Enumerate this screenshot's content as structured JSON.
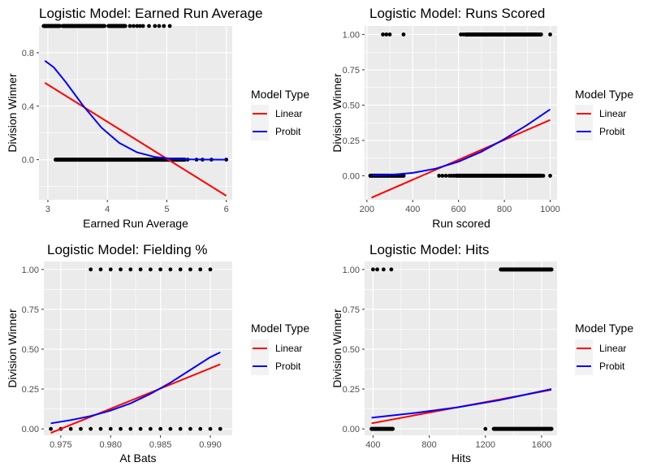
{
  "colors": {
    "panel_bg": "#EBEBEB",
    "grid": "#FFFFFF",
    "points": "#000000",
    "linear": "#FF0000",
    "probit": "#0000FF"
  },
  "legend": {
    "title": "Model Type",
    "items": [
      {
        "label": "Linear",
        "color": "#FF0000"
      },
      {
        "label": "Probit",
        "color": "#0000FF"
      }
    ]
  },
  "chart_data": [
    {
      "type": "scatter",
      "title": "Logistic Model: Earned Run Average",
      "xlabel": "Earned Run Average",
      "ylabel": "Division Winner",
      "xlim": [
        2.85,
        6.1
      ],
      "ylim": [
        -0.3,
        1.0
      ],
      "xticks": [
        3,
        4,
        5,
        6
      ],
      "xtick_labels": [
        "3",
        "4",
        "5",
        "6"
      ],
      "yticks": [
        0,
        0.4,
        0.8
      ],
      "ytick_labels": [
        "0.0",
        "0.4",
        "0.8"
      ],
      "minor_x": [
        3.5,
        4.5,
        5.5
      ],
      "minor_y": [
        -0.2,
        0.2,
        0.6
      ],
      "points": {
        "y1_segments": [
          [
            2.93,
            3.2
          ],
          [
            3.25,
            3.95
          ],
          [
            4.02,
            4.3
          ]
        ],
        "y1_x": [
          4.38,
          4.44,
          4.5,
          4.55,
          4.6,
          4.7,
          4.8,
          4.87,
          4.95,
          5.05
        ],
        "y0_segments": [
          [
            3.13,
            5.3
          ]
        ],
        "y0_x": [
          5.35,
          5.5,
          5.6,
          5.75,
          6.0
        ]
      },
      "series": [
        {
          "name": "Linear",
          "x": [
            2.95,
            6.0
          ],
          "y": [
            0.575,
            -0.27
          ]
        },
        {
          "name": "Probit",
          "x": [
            2.95,
            3.1,
            3.3,
            3.6,
            3.9,
            4.2,
            4.5,
            4.8,
            5.1,
            5.4,
            5.7,
            6.0
          ],
          "y": [
            0.74,
            0.69,
            0.58,
            0.4,
            0.24,
            0.125,
            0.055,
            0.02,
            0.006,
            0.002,
            0.0005,
            0.0001
          ]
        }
      ]
    },
    {
      "type": "scatter",
      "title": "Logistic Model: Runs Scored",
      "xlabel": "Run scored",
      "ylabel": "Division Winner",
      "xlim": [
        190,
        1030
      ],
      "ylim": [
        -0.17,
        1.06
      ],
      "xticks": [
        200,
        400,
        600,
        800,
        1000
      ],
      "xtick_labels": [
        "200",
        "400",
        "600",
        "800",
        "1000"
      ],
      "yticks": [
        0,
        0.25,
        0.5,
        0.75,
        1.0
      ],
      "ytick_labels": [
        "0.00",
        "0.25",
        "0.50",
        "0.75",
        "1.00"
      ],
      "minor_x": [
        300,
        500,
        700,
        900
      ],
      "minor_y": [
        0.125,
        0.375,
        0.625,
        0.875
      ],
      "points": {
        "y1_segments": [
          [
            630,
            960
          ]
        ],
        "y1_x": [
          270,
          285,
          300,
          360,
          610,
          620,
          1000
        ],
        "y0_segments": [
          [
            215,
            360
          ],
          [
            590,
            960
          ]
        ],
        "y0_x": [
          515,
          530,
          545,
          560,
          570,
          580,
          970,
          1000
        ]
      },
      "series": [
        {
          "name": "Linear",
          "x": [
            220,
            1000
          ],
          "y": [
            -0.155,
            0.395
          ]
        },
        {
          "name": "Probit",
          "x": [
            220,
            300,
            400,
            500,
            600,
            700,
            800,
            900,
            1000
          ],
          "y": [
            0.002,
            0.006,
            0.02,
            0.05,
            0.1,
            0.17,
            0.26,
            0.36,
            0.47
          ]
        }
      ]
    },
    {
      "type": "scatter",
      "title": "Logistic Model: Fielding %",
      "xlabel": "At Bats",
      "ylabel": "Division Winner",
      "xlim": [
        0.9733,
        0.9922
      ],
      "ylim": [
        -0.04,
        1.05
      ],
      "xticks": [
        0.975,
        0.98,
        0.985,
        0.99
      ],
      "xtick_labels": [
        "0.975",
        "0.980",
        "0.985",
        "0.990"
      ],
      "yticks": [
        0,
        0.25,
        0.5,
        0.75,
        1.0
      ],
      "ytick_labels": [
        "0.00",
        "0.25",
        "0.50",
        "0.75",
        "1.00"
      ],
      "minor_x": [
        0.9775,
        0.9825,
        0.9875
      ],
      "minor_y": [
        0.125,
        0.375,
        0.625,
        0.875
      ],
      "points": {
        "y1_x": [
          0.978,
          0.979,
          0.98,
          0.981,
          0.982,
          0.983,
          0.984,
          0.985,
          0.986,
          0.987,
          0.988,
          0.989,
          0.99
        ],
        "y0_x": [
          0.974,
          0.975,
          0.976,
          0.977,
          0.978,
          0.979,
          0.98,
          0.981,
          0.982,
          0.983,
          0.984,
          0.985,
          0.986,
          0.987,
          0.988,
          0.989,
          0.99,
          0.991
        ]
      },
      "series": [
        {
          "name": "Linear",
          "x": [
            0.974,
            0.991
          ],
          "y": [
            -0.025,
            0.405
          ]
        },
        {
          "name": "Probit",
          "x": [
            0.974,
            0.976,
            0.978,
            0.98,
            0.982,
            0.984,
            0.986,
            0.988,
            0.99,
            0.991
          ],
          "y": [
            0.035,
            0.055,
            0.08,
            0.115,
            0.16,
            0.22,
            0.29,
            0.37,
            0.45,
            0.48
          ]
        }
      ]
    },
    {
      "type": "scatter",
      "title": "Logistic Model: Hits",
      "xlabel": "Hits",
      "ylabel": "Division Winner",
      "xlim": [
        340,
        1710
      ],
      "ylim": [
        -0.04,
        1.05
      ],
      "xticks": [
        400,
        800,
        1200,
        1600
      ],
      "xtick_labels": [
        "400",
        "800",
        "1200",
        "1600"
      ],
      "minor_x": [
        600,
        1000,
        1400
      ],
      "yticks": [
        0,
        0.25,
        0.5,
        0.75,
        1.0
      ],
      "ytick_labels": [
        "0.00",
        "0.25",
        "0.50",
        "0.75",
        "1.00"
      ],
      "minor_y": [
        0.125,
        0.375,
        0.625,
        0.875
      ],
      "points": {
        "y1_segments": [
          [
            1310,
            1670
          ]
        ],
        "y1_x": [
          400,
          430,
          475,
          530
        ],
        "y0_segments": [
          [
            390,
            540
          ],
          [
            1260,
            1670
          ]
        ],
        "y0_x": [
          1200
        ]
      },
      "series": [
        {
          "name": "Linear",
          "x": [
            390,
            1670
          ],
          "y": [
            0.035,
            0.245
          ]
        },
        {
          "name": "Probit",
          "x": [
            390,
            700,
            1000,
            1300,
            1670
          ],
          "y": [
            0.07,
            0.1,
            0.135,
            0.18,
            0.25
          ]
        }
      ]
    }
  ]
}
